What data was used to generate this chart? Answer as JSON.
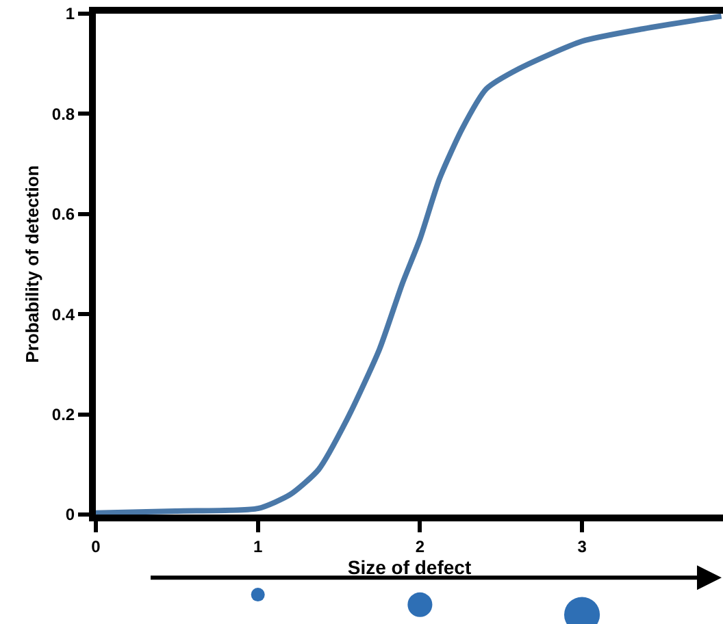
{
  "chart_data": {
    "type": "line",
    "xlabel": "Size of defect",
    "ylabel": "Probability of detection",
    "x": [
      0,
      0.5,
      1,
      1.2,
      1.375,
      1.55,
      1.75,
      1.89,
      2,
      2.12,
      2.26,
      2.41,
      2.61,
      3,
      3.38,
      3.86
    ],
    "series": [
      {
        "color": "#4a78a8",
        "values": [
          0.003,
          0.007,
          0.012,
          0.04,
          0.09,
          0.19,
          0.33,
          0.46,
          0.55,
          0.67,
          0.77,
          0.85,
          0.89,
          0.945,
          0.97,
          0.995
        ]
      }
    ],
    "xlim": [
      0,
      3.87
    ],
    "ylim": [
      0,
      1
    ],
    "xticks": [
      0,
      1,
      2,
      3
    ],
    "yticks": [
      0,
      0.2,
      0.4,
      0.6,
      0.8,
      1
    ],
    "marker": "none",
    "line_style": "solid"
  }
}
